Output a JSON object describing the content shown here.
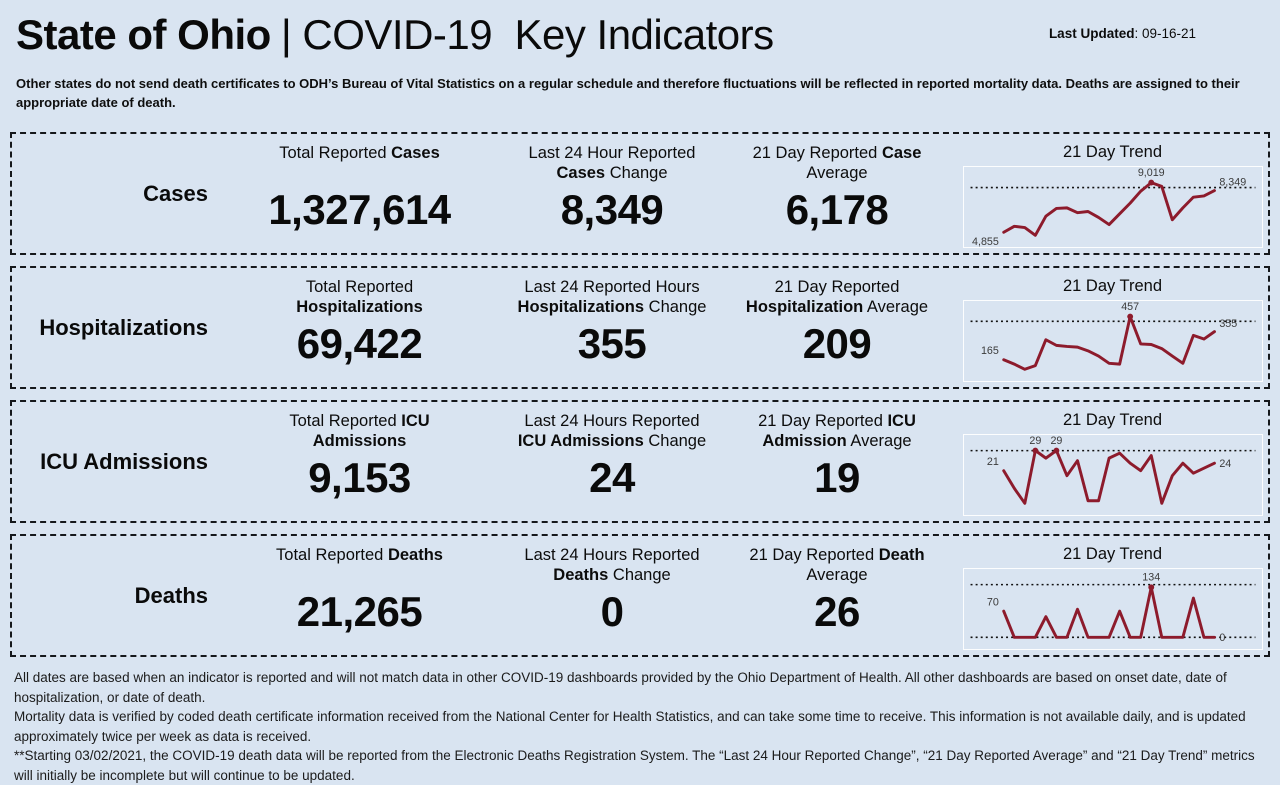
{
  "colors": {
    "background": "#d9e4f1",
    "line": "#8d1b2c",
    "border-color": "#15181c",
    "text": "#0a0a0a"
  },
  "header": {
    "title_bold": "State of Ohio",
    "title_rest": "| COVID-19  Key Indicators",
    "last_updated_label": "Last Updated",
    "last_updated_value": ": 09-16-21"
  },
  "disclaimer": "Other states do not send death certificates to ODH’s Bureau of Vital Statistics on a regular schedule and therefore fluctuations will be reflected in reported mortality data. Deaths are assigned to their appropriate date of death.",
  "rows": [
    {
      "label": "Cases",
      "trend_title": "21 Day Trend",
      "stats": [
        {
          "header": {
            "pre": "Total Reported ",
            "bold": "Cases",
            "post": ""
          },
          "value": "1,327,614"
        },
        {
          "header": {
            "pre": "Last 24 Hour Reported ",
            "bold": "Cases",
            "post": " Change"
          },
          "value": "8,349"
        },
        {
          "header": {
            "pre": "21 Day Reported ",
            "bold": "Case",
            "post": " Average"
          },
          "value": "6,178"
        }
      ]
    },
    {
      "label": "Hospitalizations",
      "trend_title": "21 Day Trend",
      "stats": [
        {
          "header": {
            "pre": "Total Reported ",
            "bold": "Hospitalizations",
            "post": ""
          },
          "value": "69,422"
        },
        {
          "header": {
            "pre": "Last 24 Reported Hours ",
            "bold": "Hospitalizations",
            "post": " Change"
          },
          "value": "355"
        },
        {
          "header": {
            "pre": "21 Day Reported ",
            "bold": "Hospitalization",
            "post": " Average"
          },
          "value": "209"
        }
      ]
    },
    {
      "label": "ICU Admissions",
      "trend_title": "21 Day Trend",
      "stats": [
        {
          "header": {
            "pre": "Total Reported ",
            "bold": "ICU Admissions",
            "post": ""
          },
          "value": "9,153"
        },
        {
          "header": {
            "pre": "Last 24 Hours Reported ",
            "bold": "ICU Admissions",
            "post": " Change"
          },
          "value": "24"
        },
        {
          "header": {
            "pre": "21 Day Reported ",
            "bold": "ICU Admission",
            "post": " Average"
          },
          "value": "19"
        }
      ]
    },
    {
      "label": "Deaths",
      "trend_title": "21 Day Trend",
      "stats": [
        {
          "header": {
            "pre": "Total Reported ",
            "bold": "Deaths",
            "post": ""
          },
          "value": "21,265"
        },
        {
          "header": {
            "pre": "Last 24 Hours Reported ",
            "bold": "Deaths",
            "post": " Change"
          },
          "value": "0"
        },
        {
          "header": {
            "pre": "21 Day Reported ",
            "bold": "Death",
            "post": " Average"
          },
          "value": "26"
        }
      ]
    }
  ],
  "chart_data": [
    {
      "name": "cases-21-day-trend",
      "type": "line",
      "title": "21 Day Trend",
      "values": [
        4855,
        5350,
        5250,
        4600,
        6200,
        6850,
        6900,
        6500,
        6600,
        6100,
        5500,
        6400,
        7300,
        8300,
        9019,
        8700,
        5900,
        6900,
        7800,
        7900,
        8349
      ],
      "first_label": "4,855",
      "max_label": "9,019",
      "last_label": "8,349",
      "ref_line": 8600,
      "first_label_position": "below",
      "last_label_position": "above"
    },
    {
      "name": "hospitalizations-21-day-trend",
      "type": "line",
      "title": "21 Day Trend",
      "values": [
        165,
        135,
        100,
        125,
        300,
        262,
        255,
        250,
        225,
        190,
        140,
        135,
        457,
        272,
        268,
        240,
        190,
        140,
        330,
        305,
        355
      ],
      "first_label": "165",
      "max_label": "457",
      "last_label": "355",
      "ref_line": 425,
      "first_label_position": "above",
      "last_label_position": "above"
    },
    {
      "name": "icu-admissions-21-day-trend",
      "type": "line",
      "title": "21 Day Trend",
      "values": [
        21,
        14,
        8,
        29,
        26,
        29,
        19,
        25,
        9,
        9,
        26,
        28,
        24,
        21,
        27,
        8,
        19,
        24,
        20,
        22,
        24
      ],
      "first_label": "21",
      "max_label": "29",
      "last_label": "24",
      "ref_line": 29,
      "first_label_position": "above",
      "last_label_position": "middle"
    },
    {
      "name": "deaths-21-day-trend",
      "type": "line",
      "title": "21 Day Trend",
      "values": [
        70,
        0,
        0,
        0,
        55,
        0,
        0,
        75,
        0,
        0,
        0,
        70,
        0,
        0,
        134,
        0,
        0,
        0,
        105,
        0,
        0
      ],
      "first_label": "70",
      "max_label": "134",
      "last_label": "0",
      "ref_line": 141,
      "ref_line_low": 0,
      "first_label_position": "above",
      "last_label_position": "middle"
    }
  ],
  "footer": {
    "paragraphs": [
      "All dates are based when an indicator is reported and will not match data in other COVID-19 dashboards provided by the Ohio Department of Health. All other dashboards are based on onset date, date of hospitalization, or date of death.",
      "Mortality data is verified by coded death certificate information received from the National Center for Health Statistics, and can take some time to receive. This information is not available daily, and is updated approximately twice per week as data is received.",
      "**Starting 03/02/2021, the COVID-19 death data will be reported from the Electronic Deaths Registration System. The “Last 24 Hour Reported Change”, “21 Day Reported Average” and “21 Day Trend” metrics will initially be incomplete but will continue to be updated."
    ]
  }
}
